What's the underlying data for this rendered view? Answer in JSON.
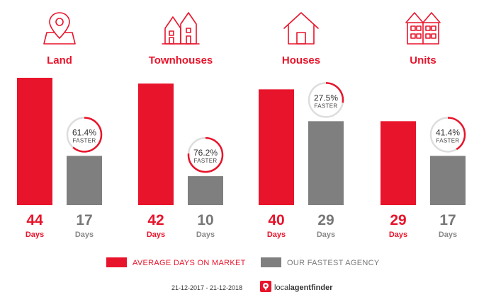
{
  "chart_data": {
    "type": "bar",
    "categories": [
      "Land",
      "Townhouses",
      "Houses",
      "Units"
    ],
    "series": [
      {
        "name": "AVERAGE DAYS ON MARKET",
        "values": [
          44,
          42,
          40,
          29
        ]
      },
      {
        "name": "OUR FASTEST AGENCY",
        "values": [
          17,
          10,
          29,
          17
        ]
      }
    ],
    "faster_pct": [
      "61.4%",
      "76.2%",
      "27.5%",
      "41.4%"
    ],
    "faster_fraction": [
      0.614,
      0.762,
      0.275,
      0.414
    ],
    "faster_label": "FASTER",
    "value_unit_label": "Days",
    "icons": [
      "map-pin-icon",
      "townhouse-icon",
      "house-icon",
      "units-icon"
    ],
    "ylim": [
      0,
      44
    ],
    "colors": {
      "market": "#e8142b",
      "agency": "#7f7f7f",
      "ring": "#e8142b",
      "ring_track": "#dddddd"
    },
    "legend_position": "bottom"
  },
  "footer": {
    "date_range": "21-12-2017 - 21-12-2018",
    "brand_prefix": "local",
    "brand_suffix": "agentfinder",
    "brand_icon": "localagentfinder-logo-icon"
  }
}
